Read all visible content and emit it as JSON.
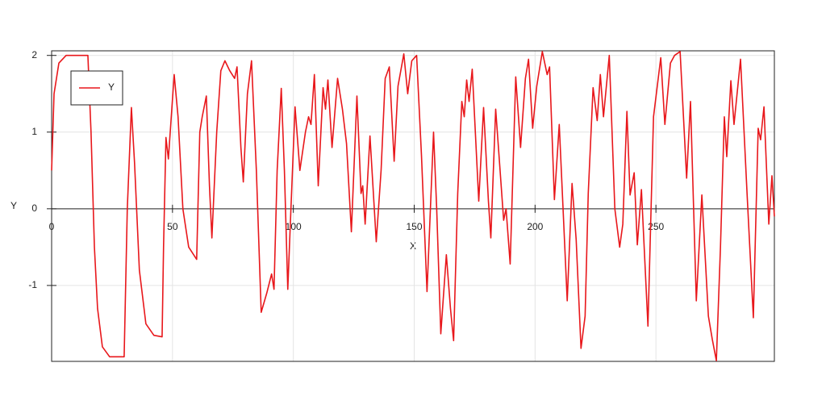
{
  "chart_data": {
    "type": "line",
    "xlabel": "X",
    "ylabel": "Y",
    "xlim": [
      0,
      299
    ],
    "ylim": [
      -1.99,
      2.06
    ],
    "xticks": [
      0,
      50,
      100,
      150,
      200,
      250
    ],
    "yticks": [
      -1,
      0,
      1,
      2
    ],
    "grid": true,
    "legend": "upper left",
    "x": [
      0,
      1,
      3,
      6,
      15,
      16.3,
      17.7,
      19,
      21,
      24,
      30,
      31.3,
      33,
      34.3,
      36.3,
      39,
      42.3,
      45.7,
      46.3,
      47.3,
      48.3,
      50.7,
      52.3,
      54.3,
      56.7,
      60,
      61.3,
      62.3,
      64,
      65.3,
      66.3,
      68.3,
      70,
      71.7,
      73.7,
      75.7,
      76.7,
      78.3,
      79.3,
      81,
      82.7,
      84.7,
      86.7,
      89,
      91,
      92,
      93.3,
      95,
      96.3,
      97.7,
      99,
      100.7,
      102.7,
      105,
      106.3,
      107.3,
      108.7,
      110.3,
      112.3,
      113.3,
      114.3,
      116,
      118.3,
      120.3,
      122,
      124,
      126.3,
      128,
      128.7,
      129.7,
      131.7,
      134.3,
      136.3,
      138,
      139.7,
      141.7,
      143.3,
      145.7,
      147.3,
      149,
      151,
      153,
      155.3,
      158,
      159.3,
      161,
      163.3,
      165,
      166.3,
      168,
      169.7,
      170.7,
      171.7,
      172.7,
      174,
      176.7,
      178.7,
      180.7,
      181.7,
      183.7,
      185.3,
      187,
      188,
      189.7,
      192,
      194,
      196,
      197.3,
      199,
      200.7,
      203,
      205,
      206,
      208,
      210,
      213.3,
      215.3,
      217,
      219,
      220.7,
      222,
      224,
      225.7,
      227,
      228.3,
      230.7,
      233,
      235,
      236.3,
      238,
      239.3,
      241,
      242.3,
      244,
      246.7,
      249,
      252,
      253.7,
      256,
      257.7,
      260,
      262.7,
      264.3,
      266.7,
      269,
      271.7,
      273.3,
      275,
      276.7,
      278.3,
      279.3,
      281,
      282.3,
      285,
      287.7,
      290.3,
      292.3,
      293.3,
      294.7,
      296.7,
      298,
      299
    ],
    "series": [
      {
        "name": "Y",
        "color": "#e8171b",
        "values": [
          0.5,
          1.5,
          1.9,
          2.0,
          2.0,
          1.0,
          -0.5,
          -1.3,
          -1.8,
          -1.93,
          -1.93,
          0,
          1.32,
          0.6,
          -0.8,
          -1.5,
          -1.65,
          -1.67,
          -0.5,
          0.93,
          0.65,
          1.75,
          1.2,
          0,
          -0.5,
          -0.66,
          1.0,
          1.2,
          1.47,
          0.3,
          -0.38,
          1.0,
          1.8,
          1.93,
          1.8,
          1.7,
          1.85,
          0.8,
          0.35,
          1.5,
          1.93,
          0.5,
          -1.35,
          -1.1,
          -0.85,
          -1.05,
          0.5,
          1.57,
          0.5,
          -1.05,
          0,
          1.33,
          0.5,
          1.0,
          1.2,
          1.1,
          1.75,
          0.3,
          1.58,
          1.3,
          1.68,
          0.8,
          1.7,
          1.3,
          0.85,
          -0.3,
          1.47,
          0.2,
          0.3,
          -0.2,
          0.95,
          -0.43,
          0.5,
          1.7,
          1.85,
          0.62,
          1.6,
          2.02,
          1.5,
          1.93,
          2.0,
          0.7,
          -1.08,
          1.0,
          0,
          -1.63,
          -0.6,
          -1.3,
          -1.72,
          0.2,
          1.4,
          1.2,
          1.68,
          1.4,
          1.82,
          0.1,
          1.32,
          0.1,
          -0.38,
          1.3,
          0.6,
          -0.15,
          0,
          -0.72,
          1.72,
          0.8,
          1.7,
          1.95,
          1.05,
          1.6,
          2.05,
          1.75,
          1.85,
          0.12,
          1.1,
          -1.2,
          0.33,
          -0.4,
          -1.82,
          -1.4,
          0.2,
          1.58,
          1.15,
          1.75,
          1.2,
          2.0,
          0,
          -0.5,
          -0.2,
          1.27,
          0.18,
          0.47,
          -0.47,
          0.25,
          -1.53,
          1.2,
          1.97,
          1.1,
          1.9,
          2.0,
          2.05,
          0.4,
          1.4,
          -1.2,
          0.18,
          -1.4,
          -1.7,
          -1.98,
          -0.5,
          1.2,
          0.68,
          1.67,
          1.1,
          1.95,
          0.2,
          -1.42,
          1.05,
          0.9,
          1.33,
          -0.2,
          0.43,
          -0.1
        ]
      }
    ]
  }
}
